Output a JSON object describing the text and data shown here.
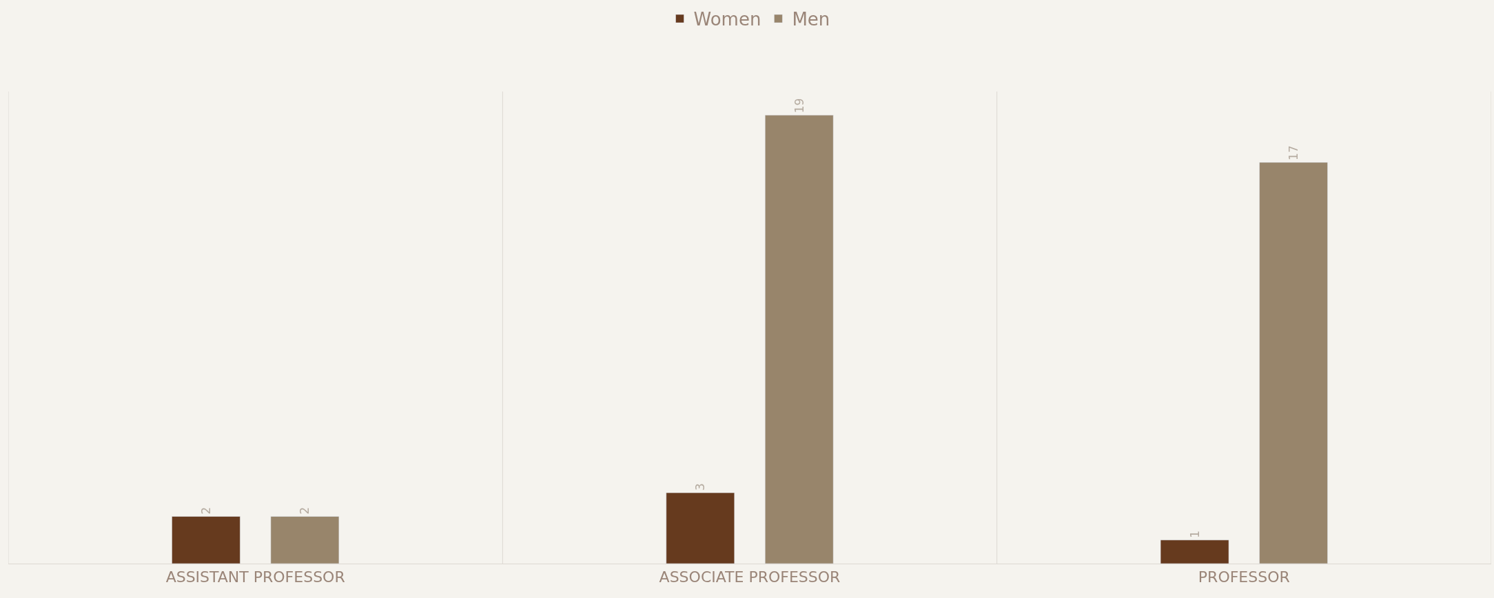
{
  "chart_data": {
    "type": "bar",
    "categories": [
      "ASSISTANT PROFESSOR",
      "ASSOCIATE PROFESSOR",
      "PROFESSOR"
    ],
    "series": [
      {
        "name": "Women",
        "color": "#663a1e",
        "values": [
          2,
          3,
          1
        ]
      },
      {
        "name": "Men",
        "color": "#98856b",
        "values": [
          2,
          19,
          17
        ]
      }
    ],
    "data_labels": true,
    "legend": "top"
  }
}
